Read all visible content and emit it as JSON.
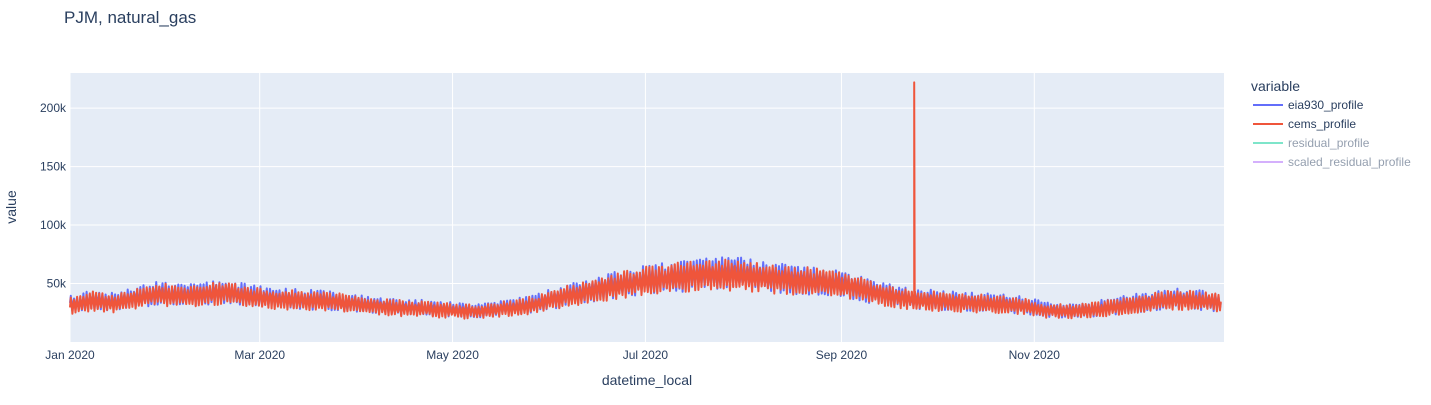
{
  "chart_data": {
    "type": "line",
    "title": "PJM, natural_gas",
    "xlabel": "datetime_local",
    "ylabel": "value",
    "x_range": [
      "2020-01-01",
      "2020-12-31"
    ],
    "ylim": [
      0,
      230000
    ],
    "x_ticks": [
      {
        "date": "2020-01-01",
        "label": "Jan 2020"
      },
      {
        "date": "2020-03-01",
        "label": "Mar 2020"
      },
      {
        "date": "2020-05-01",
        "label": "May 2020"
      },
      {
        "date": "2020-07-01",
        "label": "Jul 2020"
      },
      {
        "date": "2020-09-01",
        "label": "Sep 2020"
      },
      {
        "date": "2020-11-01",
        "label": "Nov 2020"
      }
    ],
    "y_ticks": [
      {
        "value": 50000,
        "label": "50k"
      },
      {
        "value": 100000,
        "label": "100k"
      },
      {
        "value": 150000,
        "label": "150k"
      },
      {
        "value": 200000,
        "label": "200k"
      }
    ],
    "grid": true,
    "legend": {
      "title": "variable",
      "placement": "right"
    },
    "colors": {
      "plot_bg": "#E5ECF6",
      "grid": "#ffffff",
      "text": "#2a3f5f"
    },
    "series": [
      {
        "name": "eia930_profile",
        "color": "#636EFA",
        "visible": true,
        "x": [
          "2020-01-01",
          "2020-01-08",
          "2020-01-15",
          "2020-01-22",
          "2020-01-29",
          "2020-02-05",
          "2020-02-12",
          "2020-02-19",
          "2020-02-26",
          "2020-03-04",
          "2020-03-11",
          "2020-03-18",
          "2020-03-25",
          "2020-04-01",
          "2020-04-08",
          "2020-04-15",
          "2020-04-22",
          "2020-04-29",
          "2020-05-06",
          "2020-05-13",
          "2020-05-20",
          "2020-05-27",
          "2020-06-03",
          "2020-06-10",
          "2020-06-17",
          "2020-06-24",
          "2020-07-01",
          "2020-07-08",
          "2020-07-15",
          "2020-07-22",
          "2020-07-29",
          "2020-08-05",
          "2020-08-12",
          "2020-08-19",
          "2020-08-26",
          "2020-09-02",
          "2020-09-09",
          "2020-09-16",
          "2020-09-23",
          "2020-09-30",
          "2020-10-07",
          "2020-10-14",
          "2020-10-21",
          "2020-10-28",
          "2020-11-04",
          "2020-11-11",
          "2020-11-18",
          "2020-11-25",
          "2020-12-02",
          "2020-12-09",
          "2020-12-16",
          "2020-12-23",
          "2020-12-30"
        ],
        "y": [
          32000,
          36000,
          34000,
          38000,
          42000,
          40000,
          41000,
          43000,
          40000,
          38000,
          37000,
          36000,
          35000,
          33000,
          31000,
          30000,
          29000,
          28000,
          27000,
          28000,
          30000,
          33000,
          38000,
          42000,
          46000,
          50000,
          53000,
          55000,
          57000,
          58000,
          59000,
          57000,
          55000,
          53000,
          52000,
          50000,
          44000,
          40000,
          37000,
          36000,
          35000,
          34000,
          33000,
          32000,
          28000,
          27000,
          28000,
          30000,
          33000,
          35000,
          37000,
          36000,
          34000
        ]
      },
      {
        "name": "cems_profile",
        "color": "#EF553B",
        "visible": true,
        "x": [
          "2020-01-01",
          "2020-01-08",
          "2020-01-15",
          "2020-01-22",
          "2020-01-29",
          "2020-02-05",
          "2020-02-12",
          "2020-02-19",
          "2020-02-26",
          "2020-03-04",
          "2020-03-11",
          "2020-03-18",
          "2020-03-25",
          "2020-04-01",
          "2020-04-08",
          "2020-04-15",
          "2020-04-22",
          "2020-04-29",
          "2020-05-06",
          "2020-05-13",
          "2020-05-20",
          "2020-05-27",
          "2020-06-03",
          "2020-06-10",
          "2020-06-17",
          "2020-06-24",
          "2020-07-01",
          "2020-07-08",
          "2020-07-15",
          "2020-07-22",
          "2020-07-29",
          "2020-08-05",
          "2020-08-12",
          "2020-08-19",
          "2020-08-26",
          "2020-09-02",
          "2020-09-09",
          "2020-09-16",
          "2020-09-23",
          "2020-09-30",
          "2020-10-07",
          "2020-10-14",
          "2020-10-21",
          "2020-10-28",
          "2020-11-04",
          "2020-11-11",
          "2020-11-18",
          "2020-11-25",
          "2020-12-02",
          "2020-12-09",
          "2020-12-16",
          "2020-12-23",
          "2020-12-30"
        ],
        "y": [
          31000,
          35000,
          33000,
          37000,
          41000,
          39000,
          40000,
          42000,
          39000,
          37000,
          36000,
          35000,
          34000,
          32000,
          30000,
          29000,
          28000,
          27000,
          26000,
          27000,
          29000,
          32000,
          37000,
          41000,
          45000,
          49000,
          52000,
          54000,
          56000,
          57000,
          57000,
          55000,
          54000,
          52000,
          51000,
          48000,
          43000,
          39000,
          36000,
          35000,
          34000,
          33000,
          32000,
          31000,
          27000,
          26000,
          27000,
          29000,
          32000,
          34000,
          36000,
          35000,
          33000
        ],
        "spike": {
          "x": "2020-09-24",
          "y": 222000
        }
      },
      {
        "name": "residual_profile",
        "color": "#00CC96",
        "visible": false,
        "x": [],
        "y": []
      },
      {
        "name": "scaled_residual_profile",
        "color": "#AB63FA",
        "visible": false,
        "x": [],
        "y": []
      }
    ]
  }
}
